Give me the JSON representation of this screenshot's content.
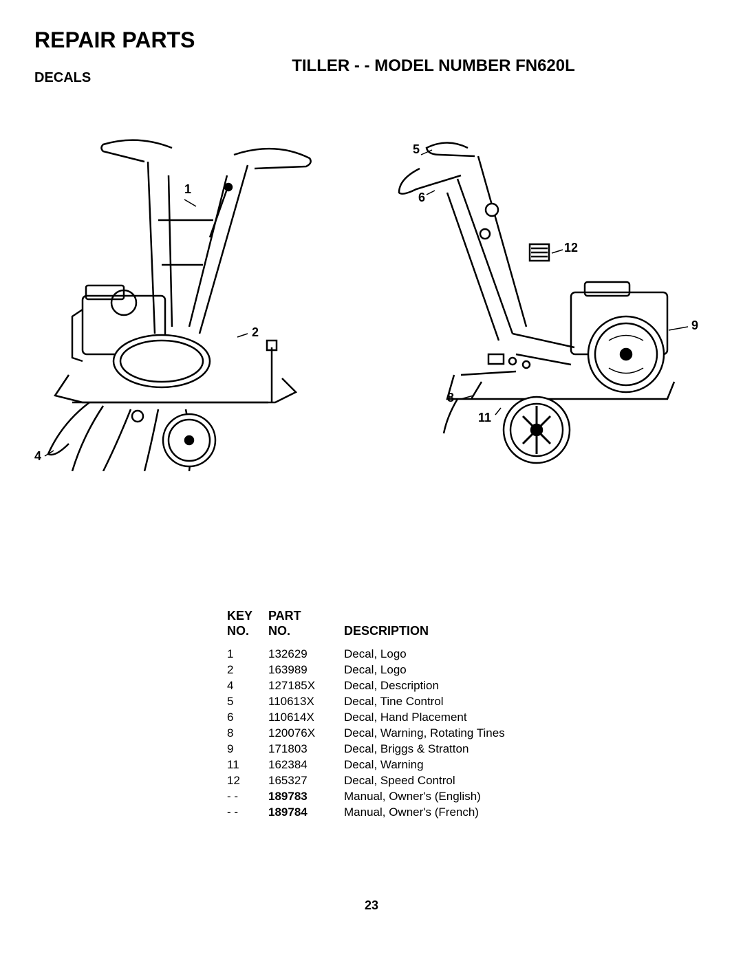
{
  "page_title": "REPAIR PARTS",
  "subtitle": "TILLER - - MODEL NUMBER FN620L",
  "section_label": "DECALS",
  "page_number": "23",
  "callouts_left": {
    "c1": "1",
    "c2": "2",
    "c4": "4"
  },
  "callouts_right": {
    "c5": "5",
    "c6": "6",
    "c12": "12",
    "c9": "9",
    "c8": "8",
    "c11": "11"
  },
  "table_headers": {
    "key_no": "KEY\nNO.",
    "part_no": "PART\nNO.",
    "description": "DESCRIPTION"
  },
  "table": {
    "columns": [
      "KEY NO.",
      "PART NO.",
      "DESCRIPTION"
    ],
    "rows": [
      {
        "key": "1",
        "part": "132629",
        "desc": "Decal, Logo",
        "bold": false
      },
      {
        "key": "2",
        "part": "163989",
        "desc": "Decal, Logo",
        "bold": false
      },
      {
        "key": "4",
        "part": "127185X",
        "desc": "Decal, Description",
        "bold": false
      },
      {
        "key": "5",
        "part": "110613X",
        "desc": "Decal, Tine Control",
        "bold": false
      },
      {
        "key": "6",
        "part": "110614X",
        "desc": "Decal, Hand Placement",
        "bold": false
      },
      {
        "key": "8",
        "part": "120076X",
        "desc": "Decal, Warning, Rotating Tines",
        "bold": false
      },
      {
        "key": "9",
        "part": "171803",
        "desc": "Decal, Briggs & Stratton",
        "bold": false
      },
      {
        "key": "11",
        "part": "162384",
        "desc": "Decal, Warning",
        "bold": false
      },
      {
        "key": "12",
        "part": "165327",
        "desc": "Decal, Speed Control",
        "bold": false
      },
      {
        "key": "- -",
        "part": "189783",
        "desc": "Manual, Owner's (English)",
        "bold": true
      },
      {
        "key": "- -",
        "part": "189784",
        "desc": "Manual, Owner's (French)",
        "bold": true
      }
    ]
  }
}
